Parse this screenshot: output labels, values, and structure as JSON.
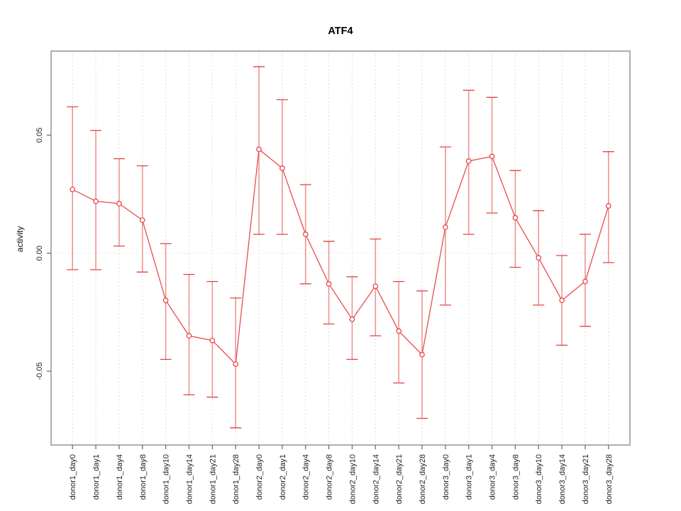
{
  "window": {
    "background": "#ffffff"
  },
  "chart_data": {
    "type": "line",
    "title": "ATF4",
    "xlabel": "",
    "ylabel": "activity",
    "legend": "none",
    "grid": {
      "vertical_dashed_per_category": true,
      "zero_line_dotted": true
    },
    "ylim": [
      -0.081,
      0.0855
    ],
    "yticks": [
      0.05,
      0.0,
      -0.05
    ],
    "ytick_labels": [
      "0.05",
      "0.00",
      "-0.05"
    ],
    "categories": [
      "donor1_day0",
      "donor1_day1",
      "donor1_day4",
      "donor1_day8",
      "donor1_day10",
      "donor1_day14",
      "donor1_day21",
      "donor1_day28",
      "donor2_day0",
      "donor2_day1",
      "donor2_day4",
      "donor2_day8",
      "donor2_day10",
      "donor2_day14",
      "donor2_day21",
      "donor2_day28",
      "donor3_day0",
      "donor3_day1",
      "donor3_day4",
      "donor3_day8",
      "donor3_day10",
      "donor3_day14",
      "donor3_day21",
      "donor3_day28"
    ],
    "series": [
      {
        "name": "activity",
        "values": [
          0.027,
          0.022,
          0.021,
          0.014,
          -0.02,
          -0.035,
          -0.037,
          -0.047,
          0.044,
          0.036,
          0.008,
          -0.013,
          -0.028,
          -0.014,
          -0.033,
          -0.043,
          0.011,
          0.039,
          0.041,
          0.015,
          -0.002,
          -0.02,
          -0.012,
          0.02
        ],
        "upper": [
          0.062,
          0.052,
          0.04,
          0.037,
          0.004,
          -0.009,
          -0.012,
          -0.019,
          0.079,
          0.065,
          0.029,
          0.005,
          -0.01,
          0.006,
          -0.012,
          -0.016,
          0.045,
          0.069,
          0.066,
          0.035,
          0.018,
          -0.001,
          0.008,
          0.043
        ],
        "lower": [
          -0.007,
          -0.007,
          0.003,
          -0.008,
          -0.045,
          -0.06,
          -0.061,
          -0.074,
          0.008,
          0.008,
          -0.013,
          -0.03,
          -0.045,
          -0.035,
          -0.055,
          -0.07,
          -0.022,
          0.008,
          0.017,
          -0.006,
          -0.022,
          -0.039,
          -0.031,
          -0.004
        ]
      }
    ],
    "colors": {
      "line": "#e84c4c",
      "point_stroke": "#e23c3c",
      "point_fill": "#ffffff",
      "error_bar": "#f08080",
      "error_cap": "#e04343",
      "grid": "#dcdcdc",
      "frame": "#8c8c8c",
      "tick": "#6e6e6e",
      "text": "#1f1f1f"
    }
  }
}
